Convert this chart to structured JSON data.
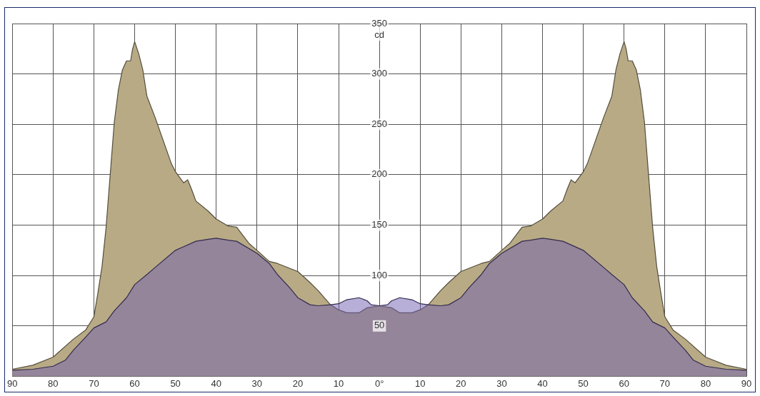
{
  "chart_data": {
    "type": "area",
    "ylabel": "cd",
    "xlim": [
      -90,
      90
    ],
    "ylim": [
      0,
      350
    ],
    "xticks": [
      {
        "value": -90,
        "label": "90"
      },
      {
        "value": -80,
        "label": "80"
      },
      {
        "value": -70,
        "label": "70"
      },
      {
        "value": -60,
        "label": "60"
      },
      {
        "value": -50,
        "label": "50"
      },
      {
        "value": -40,
        "label": "40"
      },
      {
        "value": -30,
        "label": "30"
      },
      {
        "value": -20,
        "label": "20"
      },
      {
        "value": -10,
        "label": "10"
      },
      {
        "value": 0,
        "label": "0°"
      },
      {
        "value": 10,
        "label": "10"
      },
      {
        "value": 20,
        "label": "20"
      },
      {
        "value": 30,
        "label": "30"
      },
      {
        "value": 40,
        "label": "40"
      },
      {
        "value": 50,
        "label": "50"
      },
      {
        "value": 60,
        "label": "60"
      },
      {
        "value": 70,
        "label": "70"
      },
      {
        "value": 80,
        "label": "80"
      },
      {
        "value": 90,
        "label": "90"
      }
    ],
    "yticks": [
      50,
      100,
      150,
      200,
      250,
      300,
      350
    ],
    "grid": true,
    "legend": false,
    "marker": "none",
    "series": [
      {
        "color": "#b8aa85",
        "x": [
          -90,
          -85,
          -80,
          -75,
          -72,
          -70,
          -69,
          -68,
          -67,
          -66,
          -65,
          -64,
          -63,
          -62,
          -61,
          -60.5,
          -60,
          -59,
          -58,
          -57,
          -55,
          -53,
          -51,
          -50,
          -48,
          -47,
          -46,
          -45,
          -42,
          -40,
          -37,
          -35,
          -32,
          -30,
          -27,
          -25,
          -20,
          -17,
          -15,
          -12,
          -10,
          -8,
          -5,
          -3,
          0,
          3,
          5,
          8,
          10,
          12,
          15,
          17,
          20,
          25,
          27,
          30,
          32,
          35,
          37,
          40,
          42,
          45,
          46,
          47,
          48,
          50,
          51,
          53,
          55,
          57,
          58,
          59,
          60,
          60.5,
          61,
          62,
          63,
          64,
          65,
          66,
          67,
          68,
          69,
          70,
          72,
          75,
          80,
          85,
          90
        ],
        "values": [
          7,
          11,
          19,
          37,
          46,
          59,
          83,
          109,
          148,
          200,
          252,
          284,
          304,
          313,
          313,
          325,
          332,
          320,
          304,
          278,
          257,
          234,
          211,
          203,
          192,
          195,
          185,
          174,
          164,
          156,
          149,
          148,
          132,
          125,
          114,
          112,
          104,
          93,
          85,
          71,
          66,
          63,
          63,
          68,
          70,
          68,
          63,
          63,
          66,
          71,
          85,
          93,
          104,
          112,
          114,
          125,
          132,
          148,
          149,
          156,
          164,
          174,
          185,
          195,
          192,
          203,
          211,
          234,
          257,
          278,
          304,
          320,
          332,
          325,
          313,
          313,
          304,
          284,
          252,
          200,
          148,
          109,
          83,
          59,
          46,
          37,
          19,
          11,
          7
        ]
      },
      {
        "color": "#7060b0",
        "x": [
          -90,
          -85,
          -80,
          -77,
          -75,
          -72,
          -70,
          -67,
          -65,
          -62,
          -60,
          -57,
          -55,
          -50,
          -45,
          -42,
          -40,
          -37,
          -35,
          -30,
          -27,
          -25,
          -22,
          -20,
          -17,
          -15,
          -12,
          -10,
          -8,
          -5,
          -3,
          -2,
          0,
          2,
          3,
          5,
          8,
          10,
          12,
          15,
          17,
          20,
          22,
          25,
          27,
          30,
          35,
          37,
          40,
          42,
          45,
          50,
          55,
          57,
          60,
          62,
          65,
          67,
          70,
          72,
          75,
          77,
          80,
          85,
          90
        ],
        "values": [
          6,
          7,
          10,
          16,
          26,
          39,
          48,
          54,
          65,
          78,
          91,
          101,
          108,
          125,
          134,
          136,
          137,
          135,
          134,
          122,
          112,
          101,
          88,
          78,
          71,
          70,
          71,
          72,
          76,
          78,
          75,
          71,
          70,
          71,
          75,
          78,
          76,
          72,
          71,
          70,
          71,
          78,
          88,
          101,
          112,
          122,
          134,
          135,
          137,
          136,
          134,
          125,
          108,
          101,
          91,
          78,
          65,
          54,
          48,
          39,
          26,
          16,
          10,
          7,
          6
        ]
      }
    ]
  }
}
